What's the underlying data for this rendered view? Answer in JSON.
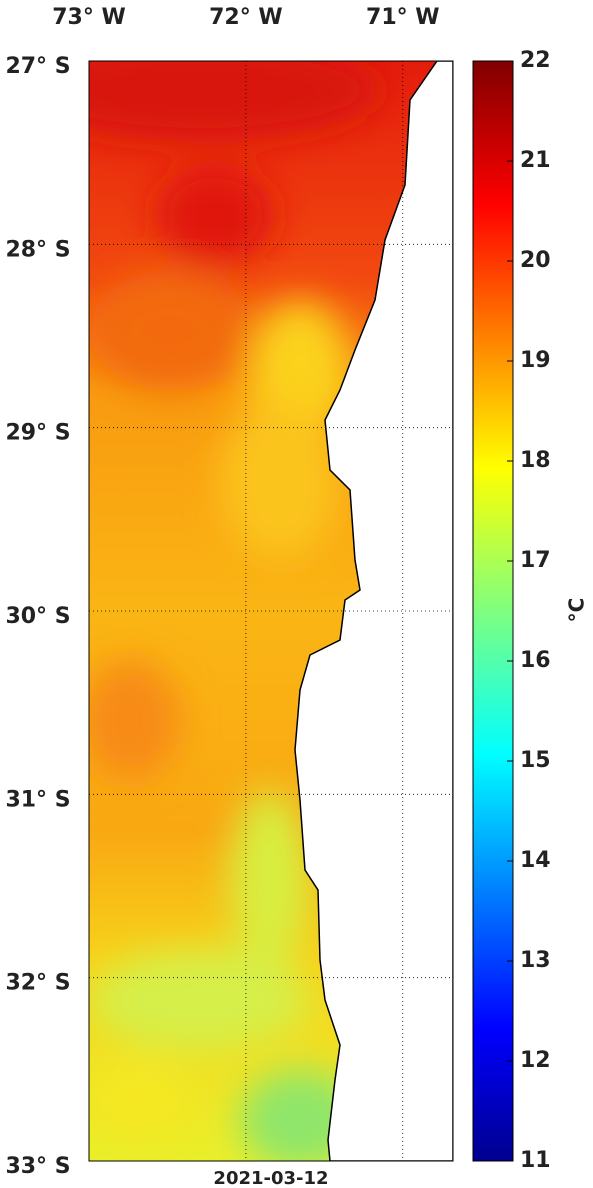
{
  "map": {
    "date": "2021-03-12",
    "xlim": [
      -73,
      -70.68
    ],
    "ylim": [
      -33,
      -27
    ],
    "xticks": [
      {
        "value": -73,
        "label": "73° W"
      },
      {
        "value": -72,
        "label": "72° W"
      },
      {
        "value": -71,
        "label": "71° W"
      }
    ],
    "yticks": [
      {
        "value": -27,
        "label": "27° S"
      },
      {
        "value": -28,
        "label": "28° S"
      },
      {
        "value": -29,
        "label": "29° S"
      },
      {
        "value": -30,
        "label": "30° S"
      },
      {
        "value": -31,
        "label": "31° S"
      },
      {
        "value": -32,
        "label": "32° S"
      },
      {
        "value": -33,
        "label": "33° S"
      }
    ],
    "colorbar": {
      "label": "°C",
      "lim": [
        11,
        22
      ],
      "ticks": [
        11,
        12,
        13,
        14,
        15,
        16,
        17,
        18,
        19,
        20,
        21,
        22
      ]
    }
  }
}
